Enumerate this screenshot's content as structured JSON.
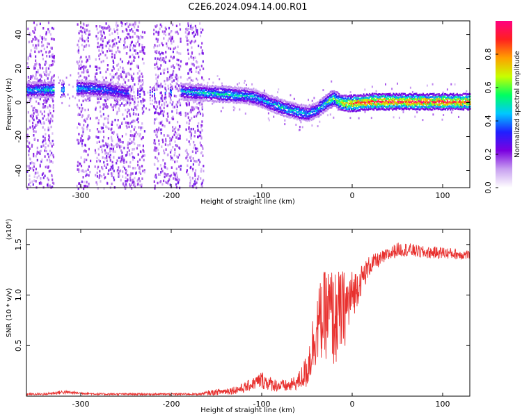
{
  "title": "C2E6.2024.094.14.00.R01",
  "chart_data": [
    {
      "type": "heatmap",
      "xlabel": "Height of straight line (km)",
      "ylabel": "Frequency (Hz)",
      "xlim": [
        -360,
        130
      ],
      "ylim": [
        -50,
        48
      ],
      "xticks": [
        -300,
        -200,
        -100,
        0,
        100
      ],
      "yticks": [
        -40,
        -20,
        0,
        20,
        40
      ],
      "colorbar": {
        "label": "Normalized spectral amplitude",
        "range": [
          0,
          1
        ],
        "ticks": [
          0.0,
          0.2,
          0.4,
          0.6,
          0.8
        ],
        "colors": [
          "#ffffff",
          "#c8a0f0",
          "#7b00e0",
          "#2020ff",
          "#00c8ff",
          "#00ff60",
          "#c8ff00",
          "#ffa000",
          "#ff2020",
          "#ff0080"
        ]
      },
      "ridge": {
        "x": [
          -355,
          -330,
          -300,
          -270,
          -250,
          -230,
          -190,
          -160,
          -130,
          -110,
          -100,
          -90,
          -75,
          -60,
          -50,
          -40,
          -35,
          -30,
          -25,
          -20,
          -15,
          -10,
          0,
          20,
          50,
          100,
          130
        ],
        "y": [
          8,
          8,
          9,
          8,
          6,
          6,
          7,
          6,
          5,
          4,
          2,
          0,
          -3,
          -5,
          -6,
          -4,
          -2,
          0,
          2,
          3,
          1,
          0,
          0,
          1,
          1,
          1,
          1
        ],
        "amplitude": [
          0.45,
          0.5,
          0.45,
          0.4,
          0.35,
          0.3,
          0.45,
          0.5,
          0.5,
          0.45,
          0.45,
          0.45,
          0.5,
          0.5,
          0.45,
          0.45,
          0.5,
          0.55,
          0.6,
          0.6,
          0.7,
          0.8,
          0.9,
          0.95,
          0.95,
          0.95,
          0.9
        ]
      },
      "noise_bands": [
        [
          -360,
          -330
        ],
        [
          -305,
          -290
        ],
        [
          -285,
          -230
        ],
        [
          -220,
          -190
        ],
        [
          -185,
          -165
        ]
      ]
    },
    {
      "type": "line",
      "xlabel": "Height of straight line (km)",
      "ylabel": "SNR (10 * v/v)",
      "y_multiplier": "(x10⁴)",
      "xlim": [
        -360,
        130
      ],
      "ylim": [
        0,
        1.65
      ],
      "xticks": [
        -300,
        -200,
        -100,
        0,
        100
      ],
      "yticks": [
        0.5,
        1.0,
        1.5
      ],
      "color": "#e8302e",
      "x": [
        -360,
        -340,
        -320,
        -300,
        -280,
        -250,
        -200,
        -170,
        -150,
        -130,
        -120,
        -110,
        -100,
        -90,
        -80,
        -70,
        -60,
        -50,
        -45,
        -40,
        -35,
        -30,
        -25,
        -20,
        -15,
        -10,
        -5,
        0,
        10,
        20,
        30,
        40,
        50,
        60,
        80,
        100,
        120,
        130
      ],
      "y": [
        0.02,
        0.02,
        0.04,
        0.03,
        0.02,
        0.02,
        0.02,
        0.02,
        0.04,
        0.06,
        0.08,
        0.12,
        0.16,
        0.12,
        0.1,
        0.1,
        0.14,
        0.25,
        0.45,
        0.65,
        0.75,
        0.8,
        0.85,
        0.75,
        0.8,
        0.85,
        0.9,
        1.0,
        1.15,
        1.3,
        1.35,
        1.4,
        1.45,
        1.45,
        1.42,
        1.42,
        1.4,
        1.4
      ],
      "noise_amplitude": [
        0.01,
        0.01,
        0.02,
        0.01,
        0.01,
        0.01,
        0.01,
        0.01,
        0.03,
        0.04,
        0.05,
        0.06,
        0.09,
        0.07,
        0.06,
        0.06,
        0.08,
        0.18,
        0.28,
        0.35,
        0.4,
        0.45,
        0.45,
        0.5,
        0.45,
        0.4,
        0.35,
        0.25,
        0.15,
        0.1,
        0.07,
        0.07,
        0.07,
        0.07,
        0.06,
        0.06,
        0.05,
        0.05
      ]
    }
  ]
}
